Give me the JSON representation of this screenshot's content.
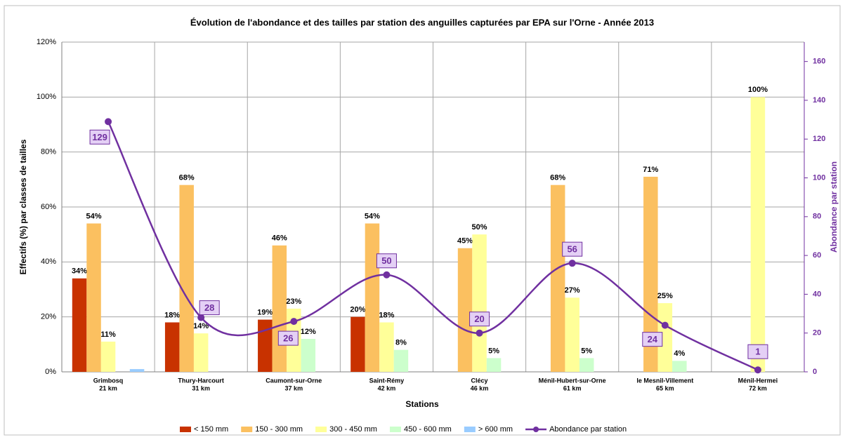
{
  "chart_data": {
    "type": "bar",
    "title": "Évolution de l'abondance  et des tailles par station des anguilles capturées par EPA sur l'Orne - Année 2013",
    "x_label": "Stations",
    "y_label": "Effectifs (%) par classes de tailles",
    "y2_label": "Abondance par station",
    "categories": [
      [
        "Grimbosq",
        "21 km"
      ],
      [
        "Thury-Harcourt",
        "31 km"
      ],
      [
        "Caumont-sur-Orne",
        "37 km"
      ],
      [
        "Saint-Rémy",
        "42 km"
      ],
      [
        "Clécy",
        "46 km"
      ],
      [
        "Ménil-Hubert-sur-Orne",
        "61 km"
      ],
      [
        "le Mesnil-Villement",
        "65 km"
      ],
      [
        "Ménil-Hermei",
        "72 km"
      ]
    ],
    "ylim": [
      0,
      120
    ],
    "yticks": [
      {
        "value": 0,
        "label": "0%"
      },
      {
        "value": 20,
        "label": "20%"
      },
      {
        "value": 40,
        "label": "40%"
      },
      {
        "value": 60,
        "label": "60%"
      },
      {
        "value": 80,
        "label": "80%"
      },
      {
        "value": 100,
        "label": "100%"
      },
      {
        "value": 120,
        "label": "120%"
      }
    ],
    "y2lim": [
      0,
      170
    ],
    "y2ticks": [
      0,
      20,
      40,
      60,
      80,
      100,
      120,
      140,
      160
    ],
    "grid": true,
    "legend": "bottom",
    "series": [
      {
        "name": "< 150 mm",
        "color": "#c83200",
        "values": [
          34,
          18,
          19,
          20,
          null,
          null,
          null,
          null
        ],
        "value_labels": [
          "34%",
          "18%",
          "19%",
          "20%",
          null,
          null,
          null,
          null
        ]
      },
      {
        "name": "150 - 300 mm",
        "color": "#fbc060",
        "values": [
          54,
          68,
          46,
          54,
          45,
          68,
          71,
          null
        ],
        "value_labels": [
          "54%",
          "68%",
          "46%",
          "54%",
          "45%",
          "68%",
          "71%",
          null
        ]
      },
      {
        "name": "300 - 450 mm",
        "color": "#ffff99",
        "values": [
          11,
          14,
          23,
          18,
          50,
          27,
          25,
          100
        ],
        "value_labels": [
          "11%",
          "14%",
          "23%",
          "18%",
          "50%",
          "27%",
          "25%",
          "100%"
        ]
      },
      {
        "name": "450 - 600 mm",
        "color": "#ccffcc",
        "values": [
          null,
          null,
          12,
          8,
          5,
          5,
          4,
          null
        ],
        "value_labels": [
          null,
          null,
          "12%",
          "8%",
          "5%",
          "5%",
          "4%",
          null
        ]
      },
      {
        "name": "> 600 mm",
        "color": "#99ccff",
        "values": [
          1,
          null,
          null,
          null,
          null,
          null,
          null,
          null
        ],
        "value_labels": [
          null,
          null,
          null,
          null,
          null,
          null,
          null,
          null
        ]
      },
      {
        "name": "Abondance par station",
        "type": "line",
        "axis": "y2",
        "color": "#7030a0",
        "values": [
          129,
          28,
          26,
          50,
          20,
          56,
          24,
          1
        ]
      }
    ]
  }
}
